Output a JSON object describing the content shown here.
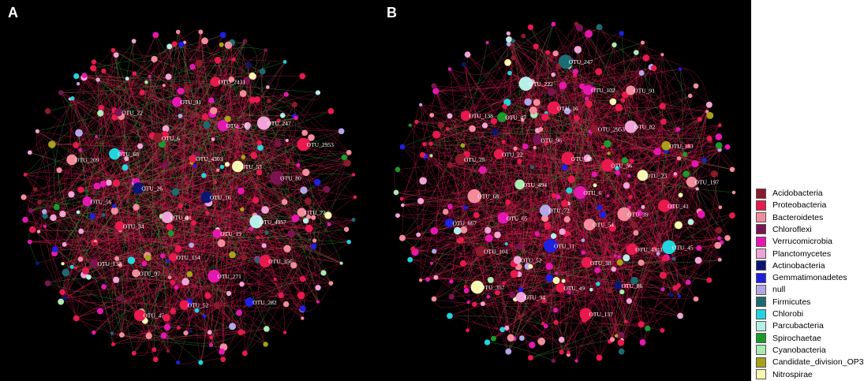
{
  "panels": [
    {
      "letter": "A",
      "labels": [
        "OTU_16",
        "OTU_41",
        "OTU_4303",
        "OTU_19",
        "OTU_26",
        "OTU_53",
        "OTU_154",
        "OTU_6",
        "OTU_4957",
        "OTU_34",
        "OTU_74",
        "OTU_271",
        "OTU_68",
        "OTU_80",
        "OTU_97",
        "OTU_91",
        "OTU_356",
        "OTU_56",
        "OTU_247",
        "OTU_52",
        "OTU_22",
        "OTU_72",
        "OTU_137",
        "OTU_2431",
        "OTU_282",
        "OTU_209",
        "OTU_2953",
        "OTU_47"
      ]
    },
    {
      "letter": "B",
      "labels": [
        "OTU_6",
        "OTU_72",
        "OTU_48",
        "OTU_54",
        "OTU_494",
        "OTU_56",
        "OTU_11",
        "OTU_96",
        "OTU_39",
        "OTU_65",
        "OTU_2953",
        "OTU_38",
        "OTU_22",
        "OTU_23",
        "OTU_52",
        "OTU_16",
        "OTU_4303",
        "OTU_68",
        "OTU_82",
        "OTU_49",
        "OTU_47",
        "OTU_41",
        "OTU_104",
        "OTU_102",
        "OTU_86",
        "OTU_25",
        "OTU_183",
        "OTU_94",
        "OTU_222",
        "OTU_45",
        "OTU_667",
        "OTU_91",
        "OTU_137",
        "OTU_138",
        "OTU_197",
        "OTU_357",
        "OTU_247"
      ]
    }
  ],
  "legend": [
    {
      "label": "Acidobacteria",
      "color": "#8b1a2b"
    },
    {
      "label": "Proteobacteria",
      "color": "#e8194d"
    },
    {
      "label": "Bacteroidetes",
      "color": "#f28b9b"
    },
    {
      "label": "Chloroflexi",
      "color": "#7a1450"
    },
    {
      "label": "Verrucomicrobia",
      "color": "#e617b0"
    },
    {
      "label": "Planctomycetes",
      "color": "#f0a3d6"
    },
    {
      "label": "Actinobacteria",
      "color": "#0a1670"
    },
    {
      "label": "Gemmatimonadetes",
      "color": "#1f1fe0"
    },
    {
      "label": "null",
      "color": "#b3a6e6"
    },
    {
      "label": "Firmicutes",
      "color": "#1d6b72"
    },
    {
      "label": "Chlorobi",
      "color": "#22d4dc"
    },
    {
      "label": "Parcubacteria",
      "color": "#b7eee8"
    },
    {
      "label": "Spirochaetae",
      "color": "#1a9a2a"
    },
    {
      "label": "Cyanobacteria",
      "color": "#a8ecb0"
    },
    {
      "label": "Candidate_division_OP3",
      "color": "#a8a11a"
    },
    {
      "label": "Nitrospirae",
      "color": "#f6f7b0"
    }
  ],
  "colors": {
    "background": "#000000",
    "edge_positive": "#d2194f",
    "edge_negative": "#3aa13a"
  }
}
